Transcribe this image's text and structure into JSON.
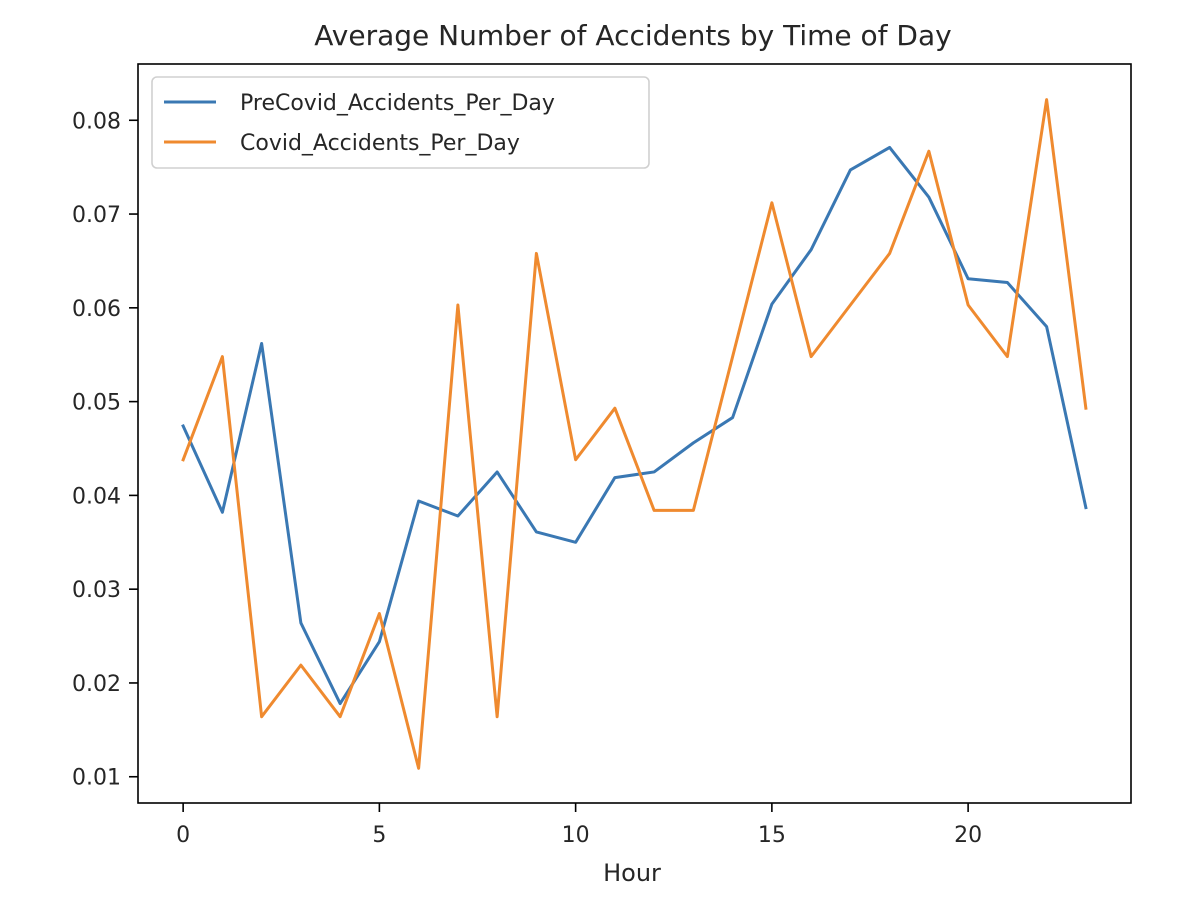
{
  "chart_data": {
    "type": "line",
    "title": "Average Number of Accidents by Time of Day",
    "xlabel": "Hour",
    "ylabel": "",
    "x": [
      0,
      1,
      2,
      3,
      4,
      5,
      6,
      7,
      8,
      9,
      10,
      11,
      12,
      13,
      14,
      15,
      16,
      17,
      18,
      19,
      20,
      21,
      22,
      23
    ],
    "xlim": [
      -1.15,
      24.15
    ],
    "ylim": [
      0.0072,
      0.086
    ],
    "xticks": [
      0,
      5,
      10,
      15,
      20
    ],
    "xtick_labels": [
      "0",
      "5",
      "10",
      "15",
      "20"
    ],
    "yticks": [
      0.01,
      0.02,
      0.03,
      0.04,
      0.05,
      0.06,
      0.07,
      0.08
    ],
    "ytick_labels": [
      "0.01",
      "0.02",
      "0.03",
      "0.04",
      "0.05",
      "0.06",
      "0.07",
      "0.08"
    ],
    "grid": false,
    "legend_position": "top-left",
    "series": [
      {
        "name": "PreCovid_Accidents_Per_Day",
        "color": "#3a78b3",
        "values": [
          0.0474,
          0.0382,
          0.0562,
          0.0264,
          0.0178,
          0.0244,
          0.0394,
          0.0378,
          0.0425,
          0.0361,
          0.035,
          0.0419,
          0.0425,
          0.0456,
          0.0483,
          0.0604,
          0.0662,
          0.0747,
          0.0771,
          0.0718,
          0.0631,
          0.0627,
          0.058,
          0.0387
        ]
      },
      {
        "name": "Covid_Accidents_Per_Day",
        "color": "#ef8a2f",
        "values": [
          0.0438,
          0.0548,
          0.0164,
          0.0219,
          0.0164,
          0.0274,
          0.0109,
          0.0603,
          0.0164,
          0.0658,
          0.0438,
          0.0493,
          0.0384,
          0.0384,
          0.0548,
          0.0712,
          0.0548,
          0.0603,
          0.0658,
          0.0767,
          0.0603,
          0.0548,
          0.0822,
          0.0493
        ]
      }
    ]
  }
}
